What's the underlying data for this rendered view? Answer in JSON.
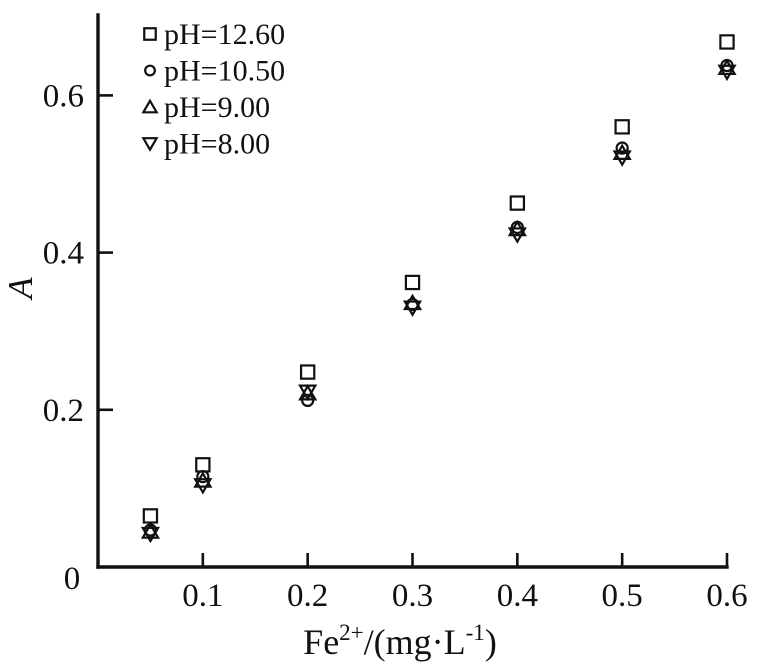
{
  "figure": {
    "background": "#ffffff",
    "ink_color": "#111111"
  },
  "chart_data": {
    "type": "scatter",
    "title": "",
    "ylabel": "A",
    "xlabel_plain": "Fe2+/(mg·L-1)",
    "xlabel_parts": [
      {
        "text": "Fe",
        "sup": false
      },
      {
        "text": "2+",
        "sup": true
      },
      {
        "text": "/(mg·L",
        "sup": false
      },
      {
        "text": "-1",
        "sup": true
      },
      {
        "text": ")",
        "sup": false
      }
    ],
    "xlim": [
      0,
      0.6
    ],
    "ylim": [
      0,
      0.7
    ],
    "grid": false,
    "legend_position": "top-left-inside",
    "xticks": [
      {
        "value": 0.1,
        "label": "0.1"
      },
      {
        "value": 0.2,
        "label": "0.2"
      },
      {
        "value": 0.3,
        "label": "0.3"
      },
      {
        "value": 0.4,
        "label": "0.4"
      },
      {
        "value": 0.5,
        "label": "0.5"
      },
      {
        "value": 0.6,
        "label": "0.6"
      }
    ],
    "yticks": [
      {
        "value": 0,
        "label": "0"
      },
      {
        "value": 0.2,
        "label": "0.2"
      },
      {
        "value": 0.4,
        "label": "0.4"
      },
      {
        "value": 0.6,
        "label": "0.6"
      }
    ],
    "x": [
      0.05,
      0.1,
      0.2,
      0.3,
      0.4,
      0.5,
      0.6
    ],
    "series": [
      {
        "name": "pH=12.60",
        "marker": "square",
        "values": [
          0.065,
          0.13,
          0.248,
          0.362,
          0.463,
          0.56,
          0.668
        ]
      },
      {
        "name": "pH=10.50",
        "marker": "circle",
        "values": [
          0.047,
          0.115,
          0.212,
          0.334,
          0.432,
          0.533,
          0.638
        ]
      },
      {
        "name": "pH=9.00",
        "marker": "triangle-up",
        "values": [
          0.045,
          0.11,
          0.221,
          0.336,
          0.43,
          0.527,
          0.635
        ]
      },
      {
        "name": "pH=8.00",
        "marker": "triangle-down",
        "values": [
          0.042,
          0.104,
          0.223,
          0.33,
          0.423,
          0.521,
          0.63
        ]
      }
    ]
  }
}
